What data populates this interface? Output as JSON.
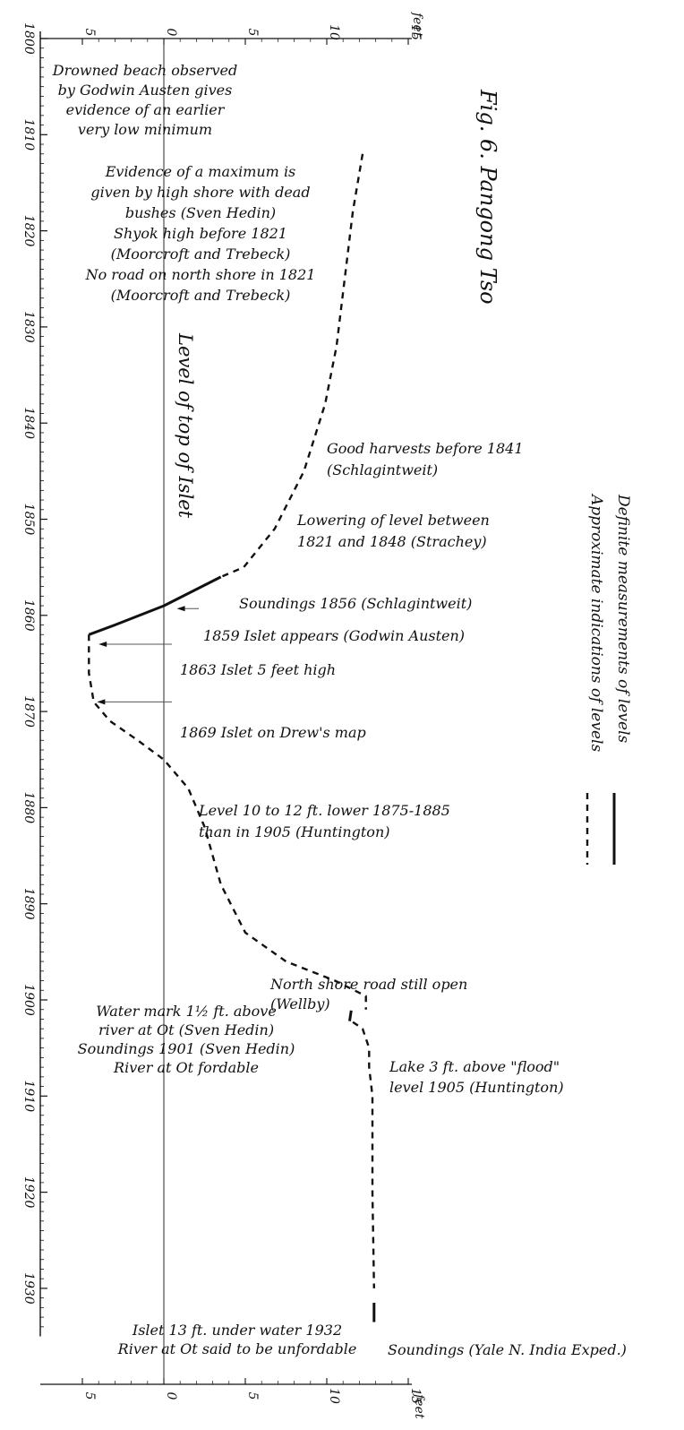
{
  "chart_data": {
    "type": "line",
    "title": "Fig. 6. Pangong Tso",
    "orientation": "vertical-time-axis",
    "x_axis": {
      "unit_label": "feet",
      "ticks": [
        5,
        0,
        5,
        10,
        15
      ],
      "tick_values": [
        -5,
        0,
        5,
        10,
        15
      ],
      "range": [
        -5,
        15
      ]
    },
    "y_axis": {
      "ticks": [
        "1800",
        "1810",
        "1820",
        "1830",
        "1840",
        "1850",
        "1860",
        "1870",
        "1880",
        "1890",
        "1900",
        "1910",
        "1920",
        "1930"
      ],
      "range": [
        1800,
        1935
      ]
    },
    "reference_line": {
      "x": 0,
      "label": "Level of top of Islet"
    },
    "legend": [
      {
        "label": "Definite measurements of levels",
        "style": "solid"
      },
      {
        "label": "Approximate indications of levels",
        "style": "dashed"
      }
    ],
    "series": [
      {
        "name": "Approximate indications of levels",
        "style": "dashed",
        "segments": [
          [
            [
              12.2,
              1812
            ],
            [
              11.6,
              1818
            ],
            [
              11.1,
              1825
            ],
            [
              10.6,
              1832
            ],
            [
              9.9,
              1838
            ],
            [
              8.6,
              1845
            ],
            [
              6.8,
              1851
            ],
            [
              4.9,
              1855
            ],
            [
              3.5,
              1856
            ]
          ],
          [
            [
              -4.6,
              1862
            ],
            [
              -4.6,
              1863.5
            ],
            [
              -4.6,
              1866
            ],
            [
              -4.3,
              1869
            ],
            [
              -3.3,
              1871
            ],
            [
              -1.6,
              1873
            ],
            [
              0,
              1875
            ],
            [
              1.5,
              1878
            ],
            [
              2.5,
              1882
            ],
            [
              3.5,
              1888
            ],
            [
              5,
              1893
            ],
            [
              7.5,
              1896
            ],
            [
              10.5,
              1898
            ],
            [
              12.4,
              1899.6
            ],
            [
              12.4,
              1901
            ]
          ],
          [
            [
              11.6,
              1902.3
            ],
            [
              12.2,
              1903
            ],
            [
              12.6,
              1905
            ],
            [
              12.6,
              1907
            ],
            [
              12.8,
              1910
            ],
            [
              12.8,
              1920
            ],
            [
              12.9,
              1930
            ]
          ]
        ]
      },
      {
        "name": "Definite measurements of levels",
        "style": "solid",
        "segments": [
          [
            [
              3.5,
              1856
            ],
            [
              0,
              1859
            ],
            [
              -3,
              1861
            ],
            [
              -4.6,
              1862
            ]
          ],
          [
            [
              11.5,
              1901.1
            ],
            [
              11.4,
              1902.2
            ]
          ],
          [
            [
              12.9,
              1931.5
            ],
            [
              12.9,
              1933.5
            ]
          ]
        ]
      }
    ],
    "annotations": [
      {
        "year": 1801,
        "lines": [
          "Drowned beach observed",
          "by Godwin Austen gives",
          "evidence of an earlier",
          "very low minimum"
        ]
      },
      {
        "year": 1811,
        "lines": [
          "Evidence of a maximum is",
          "given by high shore with dead",
          "bushes (Sven Hedin)",
          "Shyok high before 1821",
          "(Moorcroft and Trebeck)",
          "No road on north shore in 1821",
          "(Moorcroft and Trebeck)"
        ]
      },
      {
        "year": 1840,
        "lines": [
          "Good harvests before 1841",
          "(Schlagintweit)"
        ]
      },
      {
        "year": 1850,
        "lines": [
          "Lowering of level between",
          "1821 and 1848 (Strachey)"
        ]
      },
      {
        "year": 1856,
        "lines": [
          "Soundings 1856 (Schlagintweit)"
        ]
      },
      {
        "year": 1859,
        "lines": [
          "1859 Islet appears (Godwin Austen)"
        ]
      },
      {
        "year": 1863,
        "lines": [
          "1863 Islet 5 feet high"
        ]
      },
      {
        "year": 1869,
        "lines": [
          "1869 Islet on Drew's map"
        ]
      },
      {
        "year": 1877,
        "lines": [
          "Level 10 to 12 ft. lower 1875-1885",
          "than in 1905 (Huntington)"
        ]
      },
      {
        "year": 1896,
        "lines": [
          "North shore road still open",
          "(Wellby)"
        ]
      },
      {
        "year": 1899,
        "lines": [
          "Water mark 1½ ft. above",
          "river at Ot (Sven Hedin)",
          "Soundings 1901 (Sven Hedin)",
          "River at Ot fordable"
        ]
      },
      {
        "year": 1904,
        "lines": [
          "Lake 3 ft. above \"flood\"",
          "level 1905 (Huntington)"
        ]
      },
      {
        "year": 1930,
        "lines": [
          "Islet 13 ft. under water 1932",
          "River at Ot said to be unfordable"
        ]
      },
      {
        "year": 1932,
        "lines": [
          "Soundings (Yale N. India Exped.)"
        ]
      }
    ]
  }
}
